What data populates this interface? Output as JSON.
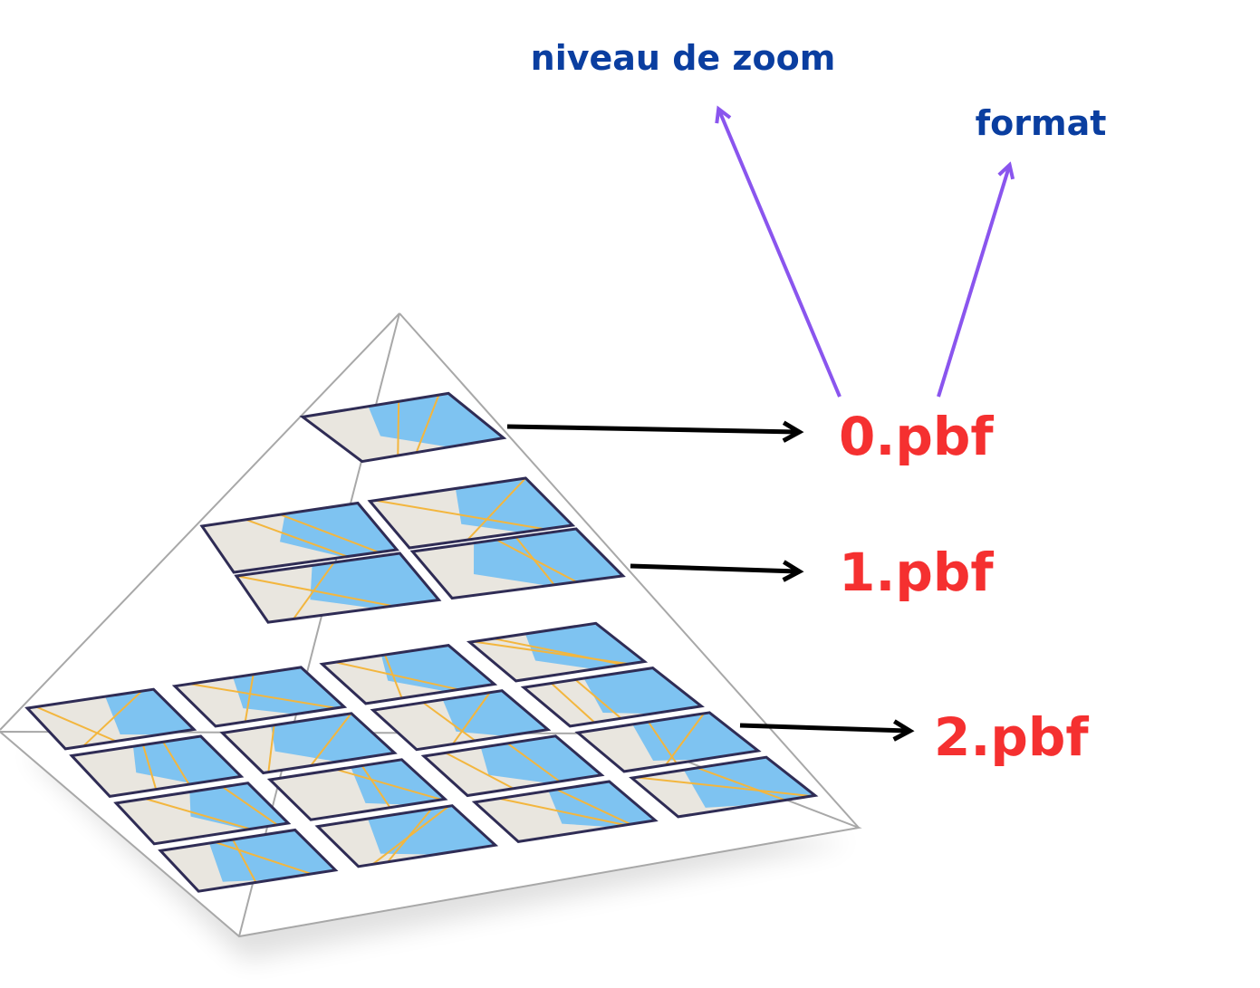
{
  "annotations": {
    "zoom_label": "niveau de zoom",
    "format_label": "format",
    "zoom_color": "#0a3ea0",
    "pointer_color": "#8a55ee"
  },
  "levels": [
    {
      "id": "level-0",
      "label": "0.pbf",
      "tiles": 1
    },
    {
      "id": "level-1",
      "label": "1.pbf",
      "tiles": 4
    },
    {
      "id": "level-2",
      "label": "2.pbf",
      "tiles": 16
    }
  ],
  "colors": {
    "label_red": "#f53030",
    "arrow_black": "#000000",
    "pyramid_edge": "#a8a8a8",
    "tile_border": "#2f2c55",
    "water": "#7ec3f1",
    "land": "#e9e6df",
    "road": "#f3b63e"
  }
}
